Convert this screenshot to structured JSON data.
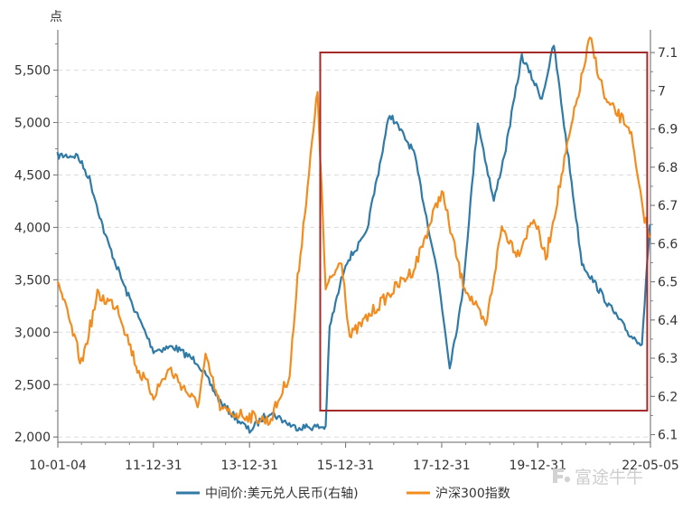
{
  "chart_data": {
    "type": "line",
    "y_left_unit": "点",
    "x_ticks": [
      "10-01-04",
      "11-12-31",
      "13-12-31",
      "15-12-31",
      "17-12-31",
      "19-12-31",
      "22-05-05"
    ],
    "y_left": {
      "ticks": [
        "2,000",
        "2,500",
        "3,000",
        "3,500",
        "4,000",
        "4,500",
        "5,000",
        "5,500"
      ],
      "range": [
        1950,
        5850
      ]
    },
    "y_right": {
      "ticks": [
        "6.1",
        "6.2",
        "6.3",
        "6.4",
        "6.5",
        "6.6",
        "6.7",
        "6.8",
        "6.9",
        "7",
        "7.1"
      ],
      "range": [
        6.08,
        7.15
      ]
    },
    "legend_position": "bottom",
    "grid": "horizontal-dashed",
    "highlight_box": {
      "from": "2015-08",
      "to": "2022-05",
      "color": "#a52a2a"
    },
    "series": [
      {
        "name": "中间价:美元兑人民币(右轴)",
        "axis": "right",
        "color": "#2f7aa6",
        "points": [
          [
            "2010-01",
            6.83
          ],
          [
            "2010-06",
            6.83
          ],
          [
            "2010-09",
            6.77
          ],
          [
            "2011-01",
            6.62
          ],
          [
            "2011-06",
            6.48
          ],
          [
            "2012-01",
            6.32
          ],
          [
            "2012-06",
            6.33
          ],
          [
            "2012-12",
            6.29
          ],
          [
            "2013-06",
            6.18
          ],
          [
            "2014-01",
            6.11
          ],
          [
            "2014-06",
            6.16
          ],
          [
            "2014-12",
            6.12
          ],
          [
            "2015-06",
            6.12
          ],
          [
            "2015-08",
            6.12
          ],
          [
            "2015-09",
            6.38
          ],
          [
            "2016-01",
            6.55
          ],
          [
            "2016-06",
            6.62
          ],
          [
            "2016-12",
            6.94
          ],
          [
            "2017-06",
            6.84
          ],
          [
            "2017-12",
            6.52
          ],
          [
            "2018-03",
            6.28
          ],
          [
            "2018-06",
            6.45
          ],
          [
            "2018-10",
            6.92
          ],
          [
            "2019-02",
            6.71
          ],
          [
            "2019-05",
            6.85
          ],
          [
            "2019-09",
            7.09
          ],
          [
            "2020-02",
            6.98
          ],
          [
            "2020-05",
            7.12
          ],
          [
            "2020-12",
            6.55
          ],
          [
            "2021-06",
            6.45
          ],
          [
            "2021-12",
            6.36
          ],
          [
            "2022-03",
            6.34
          ],
          [
            "2022-05",
            6.65
          ]
        ]
      },
      {
        "name": "沪深300指数",
        "axis": "left",
        "color": "#f28c1f",
        "points": [
          [
            "2010-01",
            3500
          ],
          [
            "2010-07",
            2700
          ],
          [
            "2010-11",
            3350
          ],
          [
            "2011-04",
            3250
          ],
          [
            "2011-09",
            2650
          ],
          [
            "2012-01",
            2400
          ],
          [
            "2012-05",
            2650
          ],
          [
            "2012-12",
            2300
          ],
          [
            "2013-02",
            2750
          ],
          [
            "2013-06",
            2250
          ],
          [
            "2014-01",
            2200
          ],
          [
            "2014-06",
            2150
          ],
          [
            "2014-11",
            2600
          ],
          [
            "2015-01",
            3500
          ],
          [
            "2015-06",
            5300
          ],
          [
            "2015-08",
            3400
          ],
          [
            "2015-12",
            3700
          ],
          [
            "2016-02",
            2950
          ],
          [
            "2016-09",
            3250
          ],
          [
            "2017-06",
            3600
          ],
          [
            "2018-01",
            4350
          ],
          [
            "2018-06",
            3500
          ],
          [
            "2018-12",
            3050
          ],
          [
            "2019-04",
            4000
          ],
          [
            "2019-08",
            3750
          ],
          [
            "2019-12",
            4100
          ],
          [
            "2020-03",
            3700
          ],
          [
            "2020-08",
            4700
          ],
          [
            "2021-02",
            5800
          ],
          [
            "2021-06",
            5200
          ],
          [
            "2021-12",
            4950
          ],
          [
            "2022-03",
            4200
          ],
          [
            "2022-05",
            3900
          ]
        ]
      }
    ]
  },
  "watermark": {
    "text": "富途牛牛",
    "icon": "futu-logo-icon"
  }
}
